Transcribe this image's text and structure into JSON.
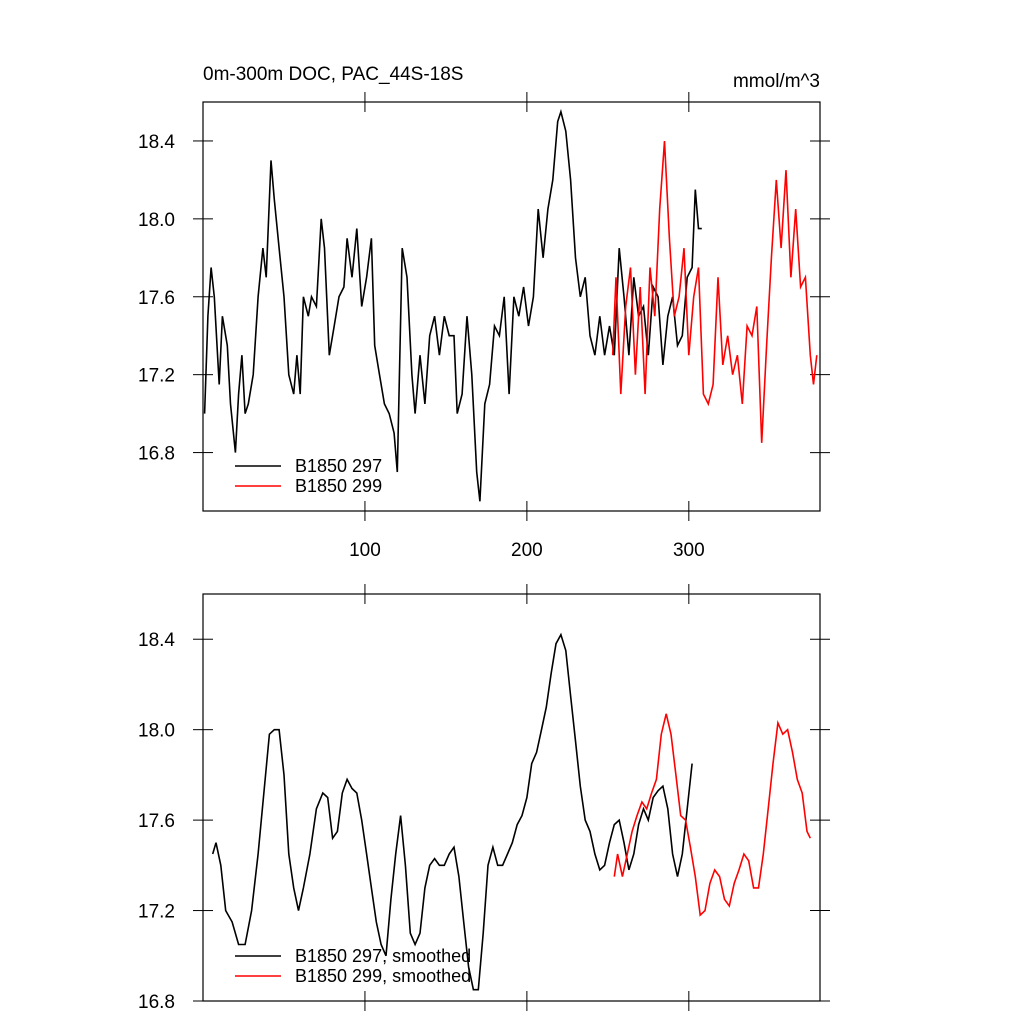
{
  "chart_data": [
    {
      "type": "line",
      "title": "0m-300m DOC, PAC_44S-18S",
      "subtitle": "mmol/m^3",
      "xlim": [
        0,
        381
      ],
      "xticks": [
        100,
        200,
        300
      ],
      "ylim": [
        16.5,
        18.6
      ],
      "yticks": [
        16.8,
        17.2,
        17.6,
        {
          "value": 18,
          "label": "18.0"
        },
        18.4
      ],
      "legend": "lower left",
      "series": [
        {
          "name": "B1850 297",
          "color": "#000000",
          "x": [
            1,
            3,
            5,
            7,
            10,
            12,
            15,
            17,
            20,
            22,
            24,
            26,
            28,
            31,
            34,
            37,
            39,
            42,
            44,
            47,
            50,
            53,
            56,
            58,
            60,
            62,
            65,
            67,
            70,
            73,
            75,
            78,
            81,
            84,
            87,
            89,
            92,
            95,
            98,
            101,
            104,
            106,
            109,
            112,
            115,
            118,
            120,
            123,
            126,
            129,
            131,
            134,
            137,
            140,
            143,
            146,
            149,
            152,
            155,
            157,
            160,
            163,
            166,
            169,
            171,
            174,
            177,
            180,
            183,
            186,
            189,
            192,
            195,
            198,
            201,
            204,
            207,
            210,
            213,
            216,
            219,
            221,
            224,
            227,
            230,
            233,
            236,
            239,
            242,
            245,
            248,
            251,
            254,
            257,
            260,
            263,
            266,
            269,
            272,
            275,
            278,
            281,
            284,
            287,
            290,
            293,
            296,
            299,
            302,
            304,
            306,
            308
          ],
          "values": [
            17.0,
            17.5,
            17.75,
            17.6,
            17.15,
            17.5,
            17.35,
            17.05,
            16.8,
            17.1,
            17.3,
            17.0,
            17.05,
            17.2,
            17.6,
            17.85,
            17.7,
            18.3,
            18.1,
            17.85,
            17.6,
            17.2,
            17.1,
            17.3,
            17.1,
            17.6,
            17.5,
            17.6,
            17.55,
            18.0,
            17.85,
            17.3,
            17.45,
            17.6,
            17.65,
            17.9,
            17.7,
            17.95,
            17.55,
            17.7,
            17.9,
            17.35,
            17.2,
            17.05,
            17.0,
            16.9,
            16.7,
            17.85,
            17.7,
            17.2,
            17.0,
            17.3,
            17.05,
            17.4,
            17.5,
            17.3,
            17.5,
            17.4,
            17.4,
            17.0,
            17.1,
            17.5,
            17.2,
            16.7,
            16.55,
            17.05,
            17.15,
            17.45,
            17.4,
            17.6,
            17.1,
            17.6,
            17.5,
            17.65,
            17.45,
            17.6,
            18.05,
            17.8,
            18.05,
            18.2,
            18.5,
            18.55,
            18.45,
            18.2,
            17.8,
            17.6,
            17.7,
            17.4,
            17.3,
            17.5,
            17.3,
            17.45,
            17.3,
            17.85,
            17.6,
            17.3,
            17.7,
            17.5,
            17.55,
            17.3,
            17.65,
            17.6,
            17.25,
            17.5,
            17.6,
            17.35,
            17.4,
            17.7,
            17.75,
            18.15,
            17.95,
            17.95
          ]
        },
        {
          "name": "B1850 299",
          "color": "#ff0000",
          "x": [
            253,
            255,
            258,
            261,
            264,
            267,
            270,
            273,
            276,
            279,
            282,
            285,
            288,
            291,
            294,
            297,
            300,
            303,
            306,
            309,
            312,
            315,
            318,
            321,
            324,
            327,
            330,
            333,
            336,
            339,
            342,
            345,
            348,
            351,
            354,
            357,
            360,
            363,
            366,
            369,
            372,
            375,
            377,
            379
          ],
          "values": [
            17.3,
            17.7,
            17.1,
            17.55,
            17.75,
            17.2,
            17.65,
            17.1,
            17.75,
            17.5,
            18.05,
            18.4,
            17.9,
            17.5,
            17.6,
            17.85,
            17.3,
            17.6,
            17.75,
            17.1,
            17.05,
            17.15,
            17.7,
            17.25,
            17.4,
            17.2,
            17.3,
            17.05,
            17.45,
            17.4,
            17.55,
            16.85,
            17.35,
            17.8,
            18.2,
            17.85,
            18.25,
            17.7,
            18.05,
            17.65,
            17.7,
            17.3,
            17.15,
            17.3
          ]
        }
      ]
    },
    {
      "type": "line",
      "xlim": [
        0,
        381
      ],
      "ylim": [
        16.8,
        18.6
      ],
      "yticks": [
        16.8,
        17.2,
        17.6,
        {
          "value": 18,
          "label": "18.0"
        },
        18.4
      ],
      "legend": "lower left",
      "series": [
        {
          "name": "B1850 297, smoothed",
          "color": "#000000",
          "x": [
            6,
            8,
            11,
            14,
            18,
            22,
            26,
            30,
            34,
            38,
            41,
            44,
            47,
            50,
            53,
            56,
            59,
            62,
            66,
            70,
            74,
            77,
            80,
            83,
            86,
            89,
            92,
            95,
            98,
            101,
            104,
            107,
            110,
            113,
            116,
            119,
            122,
            125,
            128,
            131,
            134,
            137,
            140,
            143,
            146,
            149,
            152,
            155,
            158,
            161,
            164,
            167,
            170,
            173,
            176,
            179,
            182,
            185,
            188,
            191,
            194,
            197,
            200,
            203,
            206,
            209,
            212,
            215,
            218,
            221,
            224,
            227,
            230,
            233,
            236,
            239,
            242,
            245,
            248,
            251,
            254,
            257,
            260,
            263,
            266,
            269,
            272,
            275,
            278,
            281,
            284,
            287,
            290,
            293,
            296,
            299,
            302
          ],
          "values": [
            17.45,
            17.5,
            17.4,
            17.2,
            17.15,
            17.05,
            17.05,
            17.2,
            17.45,
            17.75,
            17.98,
            18.0,
            18.0,
            17.8,
            17.45,
            17.3,
            17.2,
            17.3,
            17.45,
            17.65,
            17.72,
            17.7,
            17.52,
            17.55,
            17.72,
            17.78,
            17.74,
            17.72,
            17.6,
            17.45,
            17.3,
            17.15,
            17.05,
            17.0,
            17.25,
            17.45,
            17.62,
            17.4,
            17.1,
            17.05,
            17.1,
            17.3,
            17.4,
            17.43,
            17.4,
            17.4,
            17.45,
            17.48,
            17.35,
            17.15,
            16.95,
            16.85,
            16.85,
            17.1,
            17.4,
            17.48,
            17.4,
            17.4,
            17.45,
            17.5,
            17.58,
            17.62,
            17.7,
            17.85,
            17.9,
            18.0,
            18.1,
            18.25,
            18.38,
            18.42,
            18.35,
            18.15,
            17.95,
            17.75,
            17.6,
            17.55,
            17.45,
            17.38,
            17.4,
            17.5,
            17.58,
            17.6,
            17.5,
            17.38,
            17.45,
            17.58,
            17.65,
            17.6,
            17.7,
            17.73,
            17.75,
            17.65,
            17.45,
            17.35,
            17.45,
            17.65,
            17.85
          ]
        },
        {
          "name": "B1850 299, smoothed",
          "color": "#ff0000",
          "x": [
            254,
            256,
            259,
            262,
            265,
            268,
            271,
            274,
            277,
            280,
            283,
            286,
            289,
            292,
            295,
            298,
            301,
            304,
            307,
            310,
            313,
            316,
            319,
            322,
            325,
            328,
            331,
            334,
            337,
            340,
            343,
            346,
            349,
            352,
            355,
            358,
            361,
            364,
            367,
            370,
            373,
            375
          ],
          "values": [
            17.35,
            17.45,
            17.35,
            17.45,
            17.55,
            17.62,
            17.68,
            17.65,
            17.72,
            17.78,
            17.98,
            18.07,
            17.98,
            17.8,
            17.62,
            17.6,
            17.48,
            17.35,
            17.18,
            17.2,
            17.32,
            17.38,
            17.35,
            17.25,
            17.22,
            17.32,
            17.38,
            17.45,
            17.42,
            17.3,
            17.3,
            17.45,
            17.65,
            17.85,
            18.03,
            17.98,
            18.0,
            17.9,
            17.78,
            17.72,
            17.55,
            17.52
          ]
        }
      ]
    }
  ]
}
